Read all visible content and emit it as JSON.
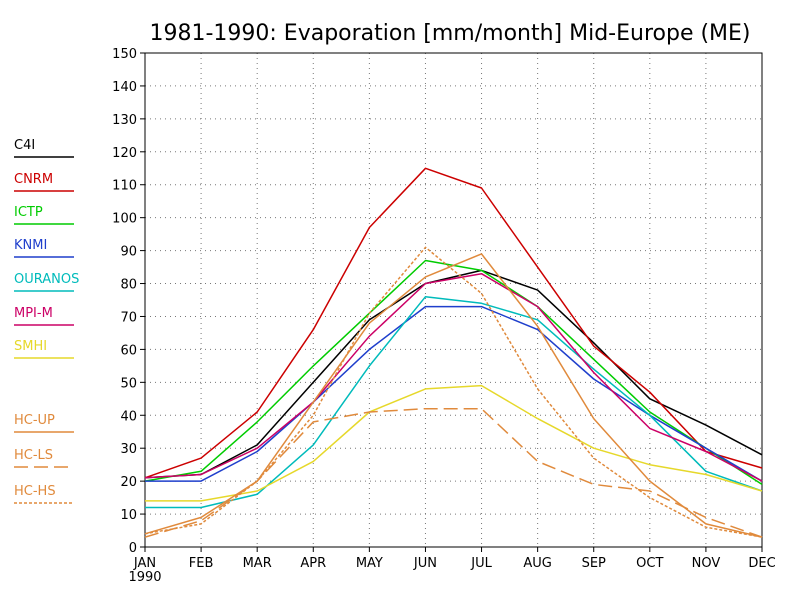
{
  "chart_data": {
    "type": "line",
    "title": "1981-1990: Evaporation [mm/month] Mid-Europe (ME)",
    "x_labels": [
      "JAN",
      "FEB",
      "MAR",
      "APR",
      "MAY",
      "JUN",
      "JUL",
      "AUG",
      "SEP",
      "OCT",
      "NOV",
      "DEC"
    ],
    "x_sublabel": "1990",
    "ylim": [
      0,
      150
    ],
    "yticks": [
      0,
      10,
      20,
      30,
      40,
      50,
      60,
      70,
      80,
      90,
      100,
      110,
      120,
      130,
      140,
      150
    ],
    "grid": true,
    "legend_placement": "left",
    "series": [
      {
        "name": "C4I",
        "color": "#000000",
        "dash": "solid",
        "values": [
          21,
          22,
          31,
          50,
          69,
          80,
          84,
          78,
          62,
          45,
          37,
          28
        ]
      },
      {
        "name": "CNRM",
        "color": "#cc0000",
        "dash": "solid",
        "values": [
          21,
          27,
          41,
          66,
          97,
          115,
          109,
          85,
          61,
          47,
          29,
          24
        ]
      },
      {
        "name": "ICTP",
        "color": "#00cc00",
        "dash": "solid",
        "values": [
          20,
          23,
          38,
          55,
          71,
          87,
          84,
          73,
          57,
          41,
          30,
          19
        ]
      },
      {
        "name": "KNMI",
        "color": "#1f3fcc",
        "dash": "solid",
        "values": [
          20,
          20,
          29,
          44,
          60,
          73,
          73,
          66,
          51,
          40,
          30,
          20
        ]
      },
      {
        "name": "OURANOS",
        "color": "#00bbbb",
        "dash": "solid",
        "values": [
          12,
          12,
          16,
          31,
          55,
          76,
          74,
          69,
          54,
          40,
          23,
          17
        ]
      },
      {
        "name": "MPI-M",
        "color": "#cc0066",
        "dash": "solid",
        "values": [
          21,
          22,
          30,
          44,
          64,
          80,
          83,
          73,
          53,
          36,
          29,
          20
        ]
      },
      {
        "name": "SMHI",
        "color": "#e6d82a",
        "dash": "solid",
        "values": [
          14,
          14,
          17,
          26,
          41,
          48,
          49,
          39,
          30,
          25,
          22,
          17
        ]
      },
      {
        "name": "HC-UP",
        "color": "#e08a3c",
        "dash": "solid",
        "values": [
          4,
          9,
          20,
          44,
          68,
          82,
          89,
          67,
          39,
          20,
          7,
          3
        ]
      },
      {
        "name": "HC-LS",
        "color": "#e08a3c",
        "dash": "long",
        "values": [
          3,
          8,
          20,
          38,
          41,
          42,
          42,
          26,
          19,
          17,
          9,
          3
        ]
      },
      {
        "name": "HC-HS",
        "color": "#e08a3c",
        "dash": "short",
        "values": [
          4,
          7,
          20,
          40,
          71,
          91,
          77,
          48,
          27,
          15,
          6,
          3
        ]
      }
    ]
  }
}
